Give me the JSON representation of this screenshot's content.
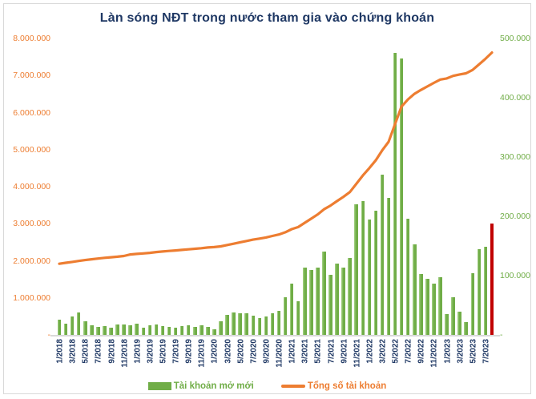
{
  "title": "Làn sóng NĐT trong nước tham gia vào chứng khoán",
  "colors": {
    "title": "#1F3864",
    "bar": "#70AD47",
    "bar_highlight": "#C00000",
    "line": "#ED7D31",
    "left_axis_labels": "#ED7D31",
    "right_axis_labels": "#70AD47",
    "x_axis_labels": "#1F3864",
    "axis_line": "#D9D9D9",
    "background": "#FFFFFF"
  },
  "chart_data": {
    "type": "combo-bar-line",
    "title": "Làn sóng NĐT trong nước tham gia vào chứng khoán",
    "grid": false,
    "legend_position": "bottom",
    "categories": [
      "1/2018",
      "2/2018",
      "3/2018",
      "4/2018",
      "5/2018",
      "6/2018",
      "7/2018",
      "8/2018",
      "9/2018",
      "10/2018",
      "11/2018",
      "12/2018",
      "1/2019",
      "2/2019",
      "3/2019",
      "4/2019",
      "5/2019",
      "6/2019",
      "7/2019",
      "8/2019",
      "9/2019",
      "10/2019",
      "11/2019",
      "12/2019",
      "1/2020",
      "2/2020",
      "3/2020",
      "4/2020",
      "5/2020",
      "6/2020",
      "7/2020",
      "8/2020",
      "9/2020",
      "10/2020",
      "11/2020",
      "12/2020",
      "1/2021",
      "2/2021",
      "3/2021",
      "4/2021",
      "5/2021",
      "6/2021",
      "7/2021",
      "8/2021",
      "9/2021",
      "10/2021",
      "11/2021",
      "12/2021",
      "1/2022",
      "2/2022",
      "3/2022",
      "4/2022",
      "5/2022",
      "6/2022",
      "7/2022",
      "8/2022",
      "9/2022",
      "10/2022",
      "11/2022",
      "12/2022",
      "1/2023",
      "2/2023",
      "3/2023",
      "4/2023",
      "5/2023",
      "6/2023",
      "7/2023",
      "8/2023"
    ],
    "x_tick_step": 2,
    "series": [
      {
        "name": "Tài khoản mở mới",
        "type": "bar",
        "axis": "right",
        "color": "#70AD47",
        "last_bar_color": "#C00000",
        "values": [
          26000,
          19000,
          31000,
          38000,
          23000,
          16000,
          14000,
          15000,
          12000,
          18000,
          17000,
          16000,
          19000,
          12000,
          16000,
          18000,
          15000,
          13000,
          12000,
          15000,
          16000,
          14000,
          16000,
          13000,
          10000,
          23000,
          34000,
          38000,
          36000,
          36000,
          33000,
          28000,
          31000,
          36000,
          41000,
          63000,
          86000,
          57000,
          113000,
          110000,
          114000,
          140000,
          101000,
          120000,
          114000,
          130000,
          220000,
          226000,
          195000,
          210000,
          270000,
          231000,
          476000,
          466000,
          196000,
          153000,
          103000,
          95000,
          87000,
          97000,
          35000,
          64000,
          39000,
          22000,
          104000,
          145000,
          149000,
          188000
        ]
      },
      {
        "name": "Tổng số tài khoản",
        "type": "line",
        "axis": "left",
        "color": "#ED7D31",
        "values": [
          1920000,
          1945000,
          1970000,
          1995000,
          2020000,
          2040000,
          2060000,
          2080000,
          2095000,
          2110000,
          2130000,
          2170000,
          2185000,
          2200000,
          2215000,
          2235000,
          2250000,
          2265000,
          2280000,
          2295000,
          2310000,
          2325000,
          2340000,
          2360000,
          2370000,
          2390000,
          2425000,
          2460000,
          2500000,
          2535000,
          2570000,
          2600000,
          2630000,
          2670000,
          2710000,
          2770000,
          2855000,
          2910000,
          3025000,
          3135000,
          3250000,
          3390000,
          3490000,
          3610000,
          3725000,
          3855000,
          4075000,
          4300000,
          4500000,
          4710000,
          4980000,
          5210000,
          5690000,
          6160000,
          6355000,
          6505000,
          6610000,
          6705000,
          6800000,
          6890000,
          6920000,
          6990000,
          7030000,
          7060000,
          7150000,
          7300000,
          7450000,
          7620000
        ]
      }
    ],
    "left_axis": {
      "min": 0,
      "max": 8000000,
      "tick_labels": [
        "8.000.000",
        "7.000.000",
        "6.000.000",
        "5.000.000",
        "4.000.000",
        "3.000.000",
        "2.000.000",
        "1.000.000",
        "-"
      ],
      "tick_values": [
        8000000,
        7000000,
        6000000,
        5000000,
        4000000,
        3000000,
        2000000,
        1000000,
        0
      ]
    },
    "right_axis": {
      "min": 0,
      "max": 500000,
      "tick_labels": [
        "500.000",
        "400.000",
        "300.000",
        "200.000",
        "100.000",
        "-"
      ],
      "tick_values": [
        500000,
        400000,
        300000,
        200000,
        100000,
        0
      ]
    }
  },
  "legend": {
    "bar_label": "Tài khoản mở mới",
    "line_label": "Tổng số tài khoản"
  }
}
